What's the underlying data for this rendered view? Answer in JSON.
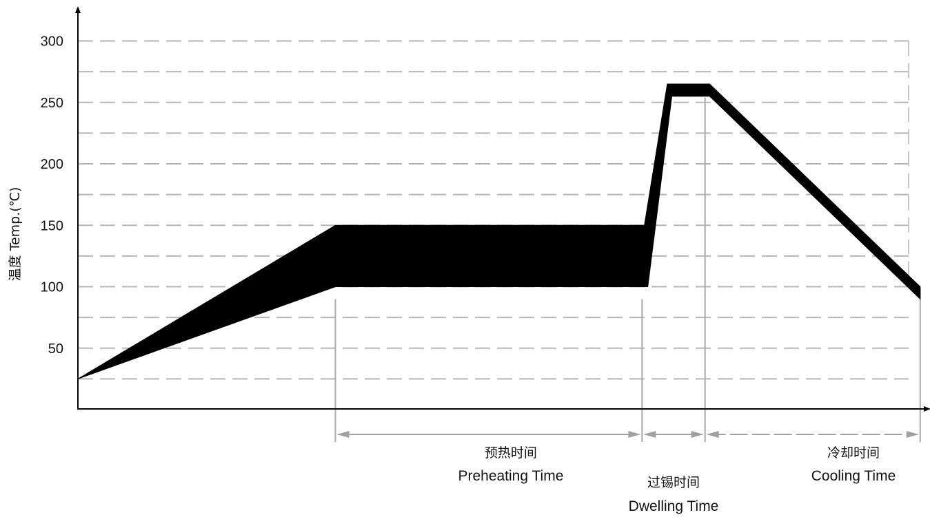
{
  "chart_data": {
    "type": "area",
    "ylabel": "温度 Temp.(℃)",
    "xlabel": "",
    "ylim": [
      0,
      300
    ],
    "y_ticks": [
      50,
      100,
      150,
      200,
      250,
      300
    ],
    "grid": true,
    "grid_minor_step": 25,
    "band_color": "#000000",
    "series": [
      {
        "upper": [
          [
            0,
            25
          ],
          [
            22.5,
            150
          ],
          [
            49.5,
            150
          ],
          [
            51.5,
            265
          ],
          [
            55.2,
            265
          ],
          [
            73.6,
            100
          ]
        ],
        "lower": [
          [
            0,
            25
          ],
          [
            22.5,
            100
          ],
          [
            49.8,
            100
          ],
          [
            51.9,
            255
          ],
          [
            55.2,
            255
          ],
          [
            73.6,
            90
          ]
        ]
      }
    ],
    "phases": [
      {
        "name_cn": "预热时间",
        "name_en": "Preheating Time",
        "start": 22.5,
        "end": 49.3
      },
      {
        "name_cn": "过锡时间",
        "name_en": "Dwelling Time",
        "start": 49.3,
        "end": 54.8
      },
      {
        "name_cn": "冷却时间",
        "name_en": "Cooling Time",
        "start": 54.8,
        "end": 73.6
      }
    ]
  }
}
